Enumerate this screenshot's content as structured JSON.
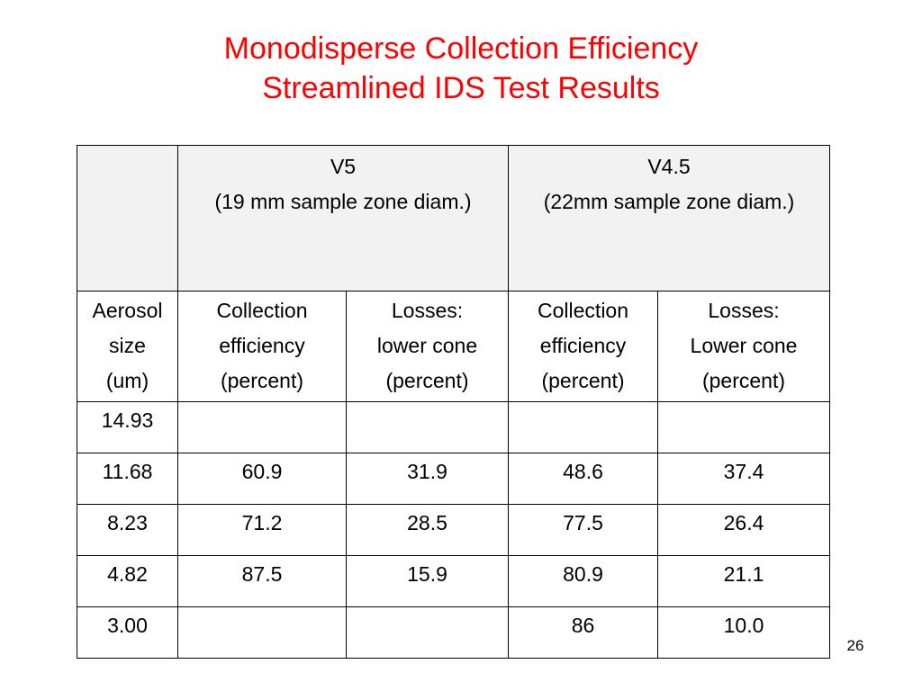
{
  "slide": {
    "title_line1": "Monodisperse Collection Efficiency",
    "title_line2": "Streamlined IDS Test Results",
    "page_number": "26"
  },
  "table": {
    "groups": [
      {
        "name": "V5",
        "detail": "(19 mm sample zone diam.)"
      },
      {
        "name": "V4.5",
        "detail": "(22mm sample zone diam.)"
      }
    ],
    "columns": [
      [
        "Aerosol",
        "size",
        "(um)"
      ],
      [
        "Collection",
        "efficiency",
        "(percent)"
      ],
      [
        "Losses:",
        "lower cone",
        "(percent)"
      ],
      [
        "Collection",
        "efficiency",
        "(percent)"
      ],
      [
        "Losses:",
        "Lower cone",
        "(percent)"
      ]
    ],
    "rows": [
      [
        "14.93",
        "",
        "",
        "",
        ""
      ],
      [
        "11.68",
        "60.9",
        "31.9",
        "48.6",
        "37.4"
      ],
      [
        "8.23",
        "71.2",
        "28.5",
        "77.5",
        "26.4"
      ],
      [
        "4.82",
        "87.5",
        "15.9",
        "80.9",
        "21.1"
      ],
      [
        "3.00",
        "",
        "",
        "86",
        "10.0"
      ]
    ]
  }
}
